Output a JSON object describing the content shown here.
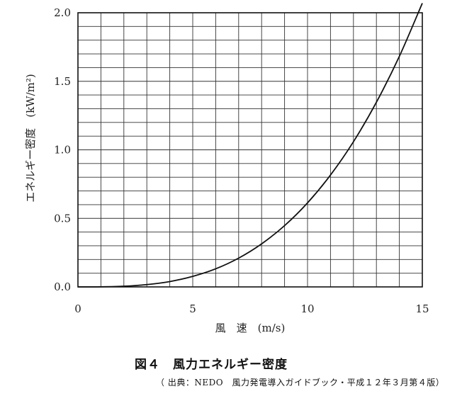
{
  "chart_data": {
    "type": "line",
    "title": "",
    "xlabel": "風　速　(m/s)",
    "ylabel": "エネルギー密度　(kW/m²)",
    "xlim": [
      0,
      15
    ],
    "ylim": [
      0,
      2.0
    ],
    "x_ticks": [
      "0",
      "5",
      "10",
      "15"
    ],
    "y_ticks": [
      "0.0",
      "0.5",
      "1.0",
      "1.5",
      "2.0"
    ],
    "grid": true,
    "series": [
      {
        "x": [
          0,
          1,
          2,
          3,
          4,
          5,
          6,
          7,
          8,
          9,
          10,
          11,
          12,
          13,
          14,
          15
        ],
        "y": [
          0,
          0.0006,
          0.005,
          0.017,
          0.039,
          0.077,
          0.132,
          0.21,
          0.314,
          0.447,
          0.613,
          0.816,
          1.059,
          1.347,
          1.682,
          2.07
        ]
      }
    ]
  },
  "caption": {
    "title": "図４　風力エネルギー密度",
    "source": "（ 出典：NEDO　風力発電導入ガイドブック・平成１２年３月第４版）"
  }
}
